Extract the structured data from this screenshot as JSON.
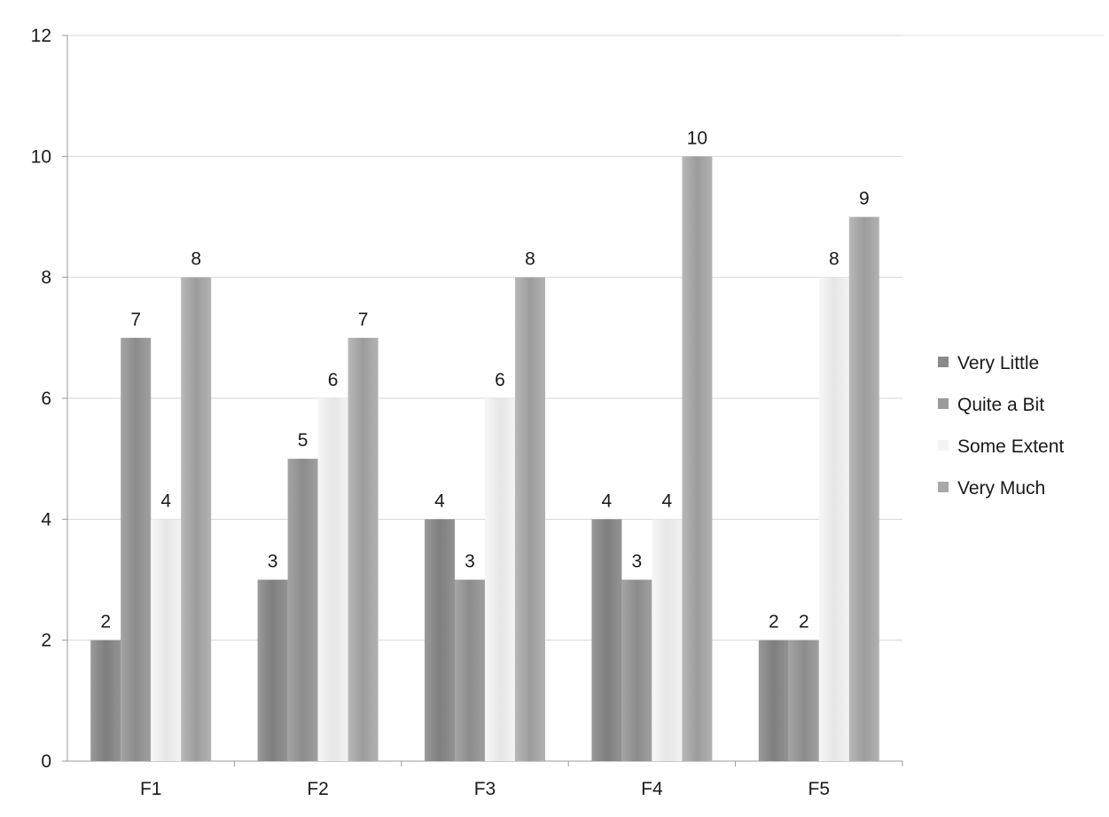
{
  "chart_data": {
    "type": "bar",
    "categories": [
      "F1",
      "F2",
      "F3",
      "F4",
      "F5"
    ],
    "series": [
      {
        "name": "Very Little",
        "color": "#8a8a8a",
        "values": [
          2,
          3,
          4,
          4,
          2
        ]
      },
      {
        "name": "Quite a Bit",
        "color": "#9a9a9a",
        "values": [
          7,
          5,
          3,
          3,
          2
        ]
      },
      {
        "name": "Some Extent",
        "color": "#f4f4f4",
        "values": [
          4,
          6,
          6,
          4,
          8
        ]
      },
      {
        "name": "Very Much",
        "color": "#a8a8a8",
        "values": [
          8,
          7,
          8,
          10,
          9
        ]
      }
    ],
    "data_labels": [
      [
        "2",
        "3",
        "4",
        "4",
        "2"
      ],
      [
        "7",
        "5",
        "3",
        "3",
        "2"
      ],
      [
        "4",
        "6",
        "6",
        "4",
        "8"
      ],
      [
        "8",
        "7",
        "8",
        "10",
        "9"
      ]
    ],
    "y_ticks": [
      "0",
      "2",
      "4",
      "6",
      "8",
      "10",
      "12"
    ],
    "ylim": [
      0,
      12
    ],
    "title": "",
    "xlabel": "",
    "ylabel": "",
    "grid": true,
    "legend": "right"
  }
}
